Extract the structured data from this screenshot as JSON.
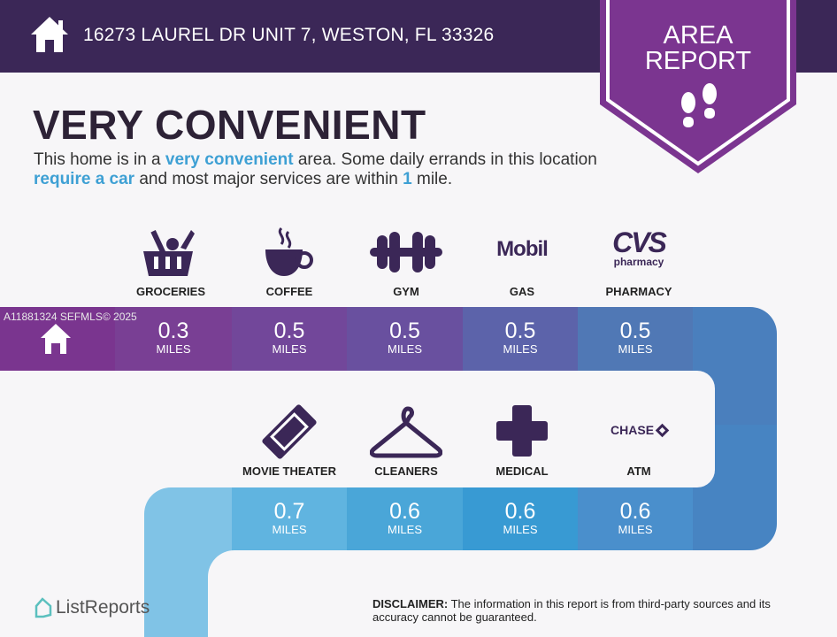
{
  "header": {
    "address": "16273 LAUREL DR UNIT 7, WESTON, FL 33326",
    "icon": "home-icon"
  },
  "badge": {
    "line1": "AREA",
    "line2": "REPORT",
    "icon": "footprints-icon"
  },
  "headline": "VERY CONVENIENT",
  "description": {
    "t1": "This home is in a ",
    "h1": "very convenient",
    "t2": " area. Some daily errands in this location ",
    "h2": "require a car",
    "t3": " and most major services are within ",
    "h3": "1",
    "t4": " mile."
  },
  "watermark": "A11881324  SEFMLS© 2025",
  "unit": "MILES",
  "row1": [
    {
      "label": "GROCERIES",
      "distance": "0.3",
      "icon": "grocery-basket-icon"
    },
    {
      "label": "COFFEE",
      "distance": "0.5",
      "icon": "coffee-cup-icon"
    },
    {
      "label": "GYM",
      "distance": "0.5",
      "icon": "dumbbell-icon"
    },
    {
      "label": "GAS",
      "distance": "0.5",
      "icon": "mobil-logo",
      "logo_text": "Mobil"
    },
    {
      "label": "PHARMACY",
      "distance": "0.5",
      "icon": "cvs-logo",
      "logo_text": "CVS",
      "logo_sub": "pharmacy"
    }
  ],
  "row2": [
    {
      "label": "MOVIE THEATER",
      "distance": "0.7",
      "icon": "ticket-icon"
    },
    {
      "label": "CLEANERS",
      "distance": "0.6",
      "icon": "hanger-icon"
    },
    {
      "label": "MEDICAL",
      "distance": "0.6",
      "icon": "medical-cross-icon"
    },
    {
      "label": "ATM",
      "distance": "0.6",
      "icon": "chase-logo",
      "logo_text": "CHASE"
    }
  ],
  "footer": {
    "brand": "ListReports",
    "disclaimer_label": "DISCLAIMER:",
    "disclaimer_text": " The information in this report is from third-party sources and its accuracy cannot be guaranteed."
  },
  "colors": {
    "header": "#3b2757",
    "badge": "#7b3590",
    "icon": "#3b2757",
    "highlight": "#3ea0d4"
  }
}
